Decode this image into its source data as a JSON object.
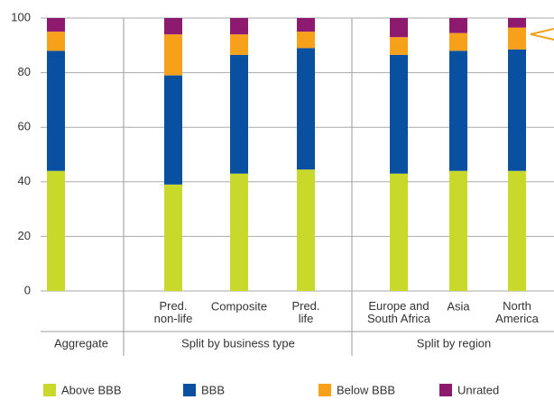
{
  "chart_data": {
    "type": "stacked_bar",
    "categories": [
      null,
      "Pred.\nnon-life",
      "Composite",
      "Pred.\nlife",
      "Europe and\nSouth Africa",
      "Asia",
      "North\nAmerica"
    ],
    "groups": [
      "Aggregate",
      "Split by business type",
      "Split by region"
    ],
    "series": [
      {
        "name": "Above BBB",
        "color": "#c8d92b",
        "values": [
          44,
          39,
          43,
          44.5,
          43,
          44,
          44
        ]
      },
      {
        "name": "BBB",
        "color": "#0a50a1",
        "values": [
          44,
          40,
          43.5,
          44.5,
          43.5,
          44,
          44.5
        ]
      },
      {
        "name": "Below BBB",
        "color": "#f7a11a",
        "values": [
          7,
          15,
          7.5,
          6,
          6.5,
          6.5,
          8
        ]
      },
      {
        "name": "Unrated",
        "color": "#8e1a6f",
        "values": [
          5,
          6,
          6,
          5,
          7,
          5.5,
          3.5
        ]
      }
    ],
    "ylim": [
      0,
      100
    ],
    "yticks": [
      0,
      20,
      40,
      60,
      80,
      100
    ],
    "grid": true
  }
}
